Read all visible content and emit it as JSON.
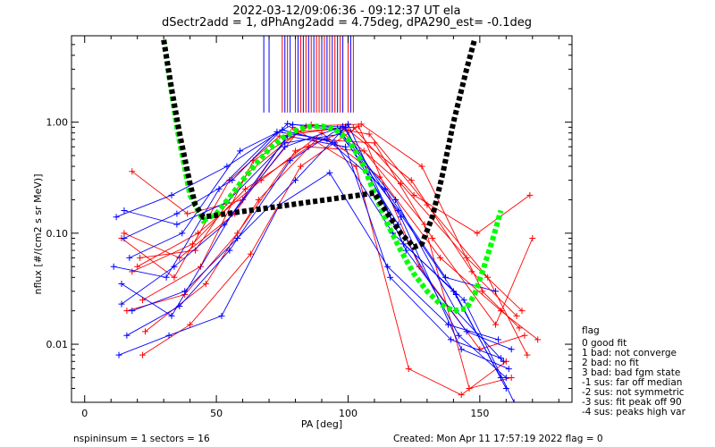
{
  "header": {
    "title_line1": "2022-03-12/09:06:36 - 09:12:37 UT ela",
    "title_line2": "dSectr2add = 1, dPhAng2add = 4.75deg, dPA290_est=  -0.1deg"
  },
  "footer": {
    "left": "nspininsum =  1  sectors = 16",
    "right": "Created: Mon Apr 11 17:57:19 2022   flag = 0"
  },
  "legend": {
    "title": "flag",
    "items": [
      " 0 good fit",
      " 1 bad: not converge",
      " 2 bad: no fit",
      " 3 bad: bad fgm state",
      "-1 sus: far off median",
      "-2 sus: not symmetric",
      "-3 sus: fit peak off 90",
      "-4 sus: peaks high var"
    ]
  },
  "colors": {
    "red_series": "#ff0000",
    "blue_series": "#0000ff",
    "fit_green": "#00ff00",
    "fit_black": "#000000"
  },
  "chart_data": {
    "type": "line",
    "xlabel": "PA [deg]",
    "ylabel": "nflux [#/(cm2 s sr MeV)]",
    "xlim": [
      -5,
      185
    ],
    "ylim": [
      0.003,
      6.0
    ],
    "yscale": "log",
    "x_ticks": [
      0,
      50,
      100,
      150
    ],
    "y_ticks": [
      {
        "value": 0.01,
        "label": "0.01"
      },
      {
        "value": 0.1,
        "label": "0.10"
      },
      {
        "value": 1.0,
        "label": "1.00"
      }
    ],
    "grid": false,
    "series": [
      {
        "color": "red",
        "x": [
          14,
          34,
          55,
          74,
          96,
          120,
          145,
          166
        ],
        "y": [
          0.09,
          0.04,
          0.3,
          0.75,
          0.88,
          0.28,
          0.06,
          0.02
        ]
      },
      {
        "color": "red",
        "x": [
          18,
          39,
          60,
          81,
          102,
          125,
          149,
          169
        ],
        "y": [
          0.36,
          0.15,
          0.2,
          0.82,
          0.9,
          0.22,
          0.1,
          0.22
        ]
      },
      {
        "color": "red",
        "x": [
          21,
          42,
          62,
          84,
          105,
          128,
          151,
          165
        ],
        "y": [
          0.06,
          0.07,
          0.35,
          0.92,
          0.96,
          0.4,
          0.03,
          0.014
        ]
      },
      {
        "color": "red",
        "x": [
          22,
          44,
          64,
          86,
          108,
          130,
          153,
          168
        ],
        "y": [
          0.025,
          0.05,
          0.45,
          0.95,
          0.78,
          0.18,
          0.04,
          0.008
        ]
      },
      {
        "color": "red",
        "x": [
          23,
          46,
          66,
          88,
          110,
          132,
          156,
          170
        ],
        "y": [
          0.013,
          0.035,
          0.2,
          0.7,
          0.65,
          0.09,
          0.015,
          0.09
        ]
      },
      {
        "color": "red",
        "x": [
          16,
          38,
          58,
          80,
          100,
          124,
          147,
          164
        ],
        "y": [
          0.02,
          0.028,
          0.1,
          0.55,
          0.85,
          0.3,
          0.045,
          0.018
        ]
      },
      {
        "color": "red",
        "x": [
          22,
          40,
          63,
          82,
          104,
          127,
          150,
          167
        ],
        "y": [
          0.008,
          0.015,
          0.065,
          0.4,
          0.92,
          0.05,
          0.009,
          0.012
        ]
      },
      {
        "color": "red",
        "x": [
          20,
          43,
          67,
          90,
          112,
          135,
          158,
          172
        ],
        "y": [
          0.05,
          0.1,
          0.3,
          0.8,
          0.32,
          0.06,
          0.02,
          0.011
        ]
      },
      {
        "color": "red",
        "x": [
          15,
          36,
          57,
          79,
          103,
          123,
          143,
          160
        ],
        "y": [
          0.1,
          0.06,
          0.15,
          0.9,
          0.4,
          0.006,
          0.0035,
          0.007
        ]
      },
      {
        "color": "red",
        "x": [
          18,
          41,
          61,
          85,
          106,
          129,
          146,
          162
        ],
        "y": [
          0.045,
          0.08,
          0.25,
          0.6,
          0.55,
          0.12,
          0.004,
          0.005
        ]
      },
      {
        "color": "blue",
        "x": [
          12,
          33,
          54,
          75,
          95,
          117,
          140,
          158
        ],
        "y": [
          0.14,
          0.22,
          0.4,
          0.85,
          0.65,
          0.1,
          0.03,
          0.005
        ]
      },
      {
        "color": "blue",
        "x": [
          15,
          35,
          56,
          77,
          97,
          119,
          142,
          160
        ],
        "y": [
          0.09,
          0.15,
          0.3,
          0.97,
          0.84,
          0.12,
          0.012,
          0.005
        ]
      },
      {
        "color": "blue",
        "x": [
          17,
          37,
          59,
          79,
          99,
          121,
          144,
          163
        ],
        "y": [
          0.06,
          0.1,
          0.55,
          0.95,
          0.9,
          0.08,
          0.025,
          0.003
        ]
      },
      {
        "color": "blue",
        "x": [
          13,
          32,
          52,
          74,
          93,
          115,
          138,
          157
        ],
        "y": [
          0.008,
          0.012,
          0.018,
          0.18,
          0.35,
          0.05,
          0.015,
          0.011
        ]
      },
      {
        "color": "blue",
        "x": [
          14,
          34,
          53,
          76,
          96,
          118,
          141,
          159
        ],
        "y": [
          0.023,
          0.05,
          0.12,
          0.6,
          0.88,
          0.2,
          0.02,
          0.007
        ]
      },
      {
        "color": "blue",
        "x": [
          16,
          36,
          55,
          78,
          98,
          120,
          143,
          161
        ],
        "y": [
          0.012,
          0.022,
          0.07,
          0.45,
          0.92,
          0.14,
          0.009,
          0.006
        ]
      },
      {
        "color": "blue",
        "x": [
          11,
          31,
          51,
          73,
          92,
          114,
          137,
          156
        ],
        "y": [
          0.05,
          0.04,
          0.25,
          0.82,
          0.7,
          0.25,
          0.04,
          0.03
        ]
      },
      {
        "color": "blue",
        "x": [
          18,
          38,
          58,
          80,
          100,
          122,
          145,
          162
        ],
        "y": [
          0.02,
          0.03,
          0.09,
          0.3,
          0.96,
          0.07,
          0.013,
          0.009
        ]
      },
      {
        "color": "blue",
        "x": [
          15,
          35,
          54,
          76,
          97,
          119,
          141,
          160
        ],
        "y": [
          0.16,
          0.12,
          0.19,
          0.65,
          0.78,
          0.16,
          0.028,
          0.004
        ]
      },
      {
        "color": "blue",
        "x": [
          14,
          33,
          56,
          77,
          99,
          116,
          139,
          158
        ],
        "y": [
          0.035,
          0.018,
          0.15,
          0.75,
          0.6,
          0.04,
          0.011,
          0.0075
        ]
      }
    ],
    "fits": [
      {
        "color": "green",
        "x": [
          30,
          35,
          40,
          45,
          50,
          55,
          60,
          65,
          70,
          75,
          80,
          85,
          90,
          95,
          100,
          105,
          110,
          115,
          120,
          125,
          130,
          135,
          140,
          145,
          148,
          151,
          155,
          158
        ],
        "y": [
          5.5,
          0.9,
          0.22,
          0.13,
          0.15,
          0.21,
          0.3,
          0.42,
          0.57,
          0.72,
          0.84,
          0.91,
          0.92,
          0.86,
          0.7,
          0.45,
          0.23,
          0.12,
          0.07,
          0.043,
          0.03,
          0.023,
          0.02,
          0.021,
          0.028,
          0.045,
          0.09,
          0.16
        ]
      },
      {
        "color": "black",
        "x": [
          30,
          33,
          36,
          40,
          42,
          45,
          110,
          115,
          120,
          125,
          128,
          132,
          136,
          140,
          145,
          148
        ],
        "y": [
          5.5,
          2.0,
          0.8,
          0.28,
          0.18,
          0.14,
          0.23,
          0.15,
          0.1,
          0.075,
          0.08,
          0.14,
          0.35,
          1.0,
          3.0,
          5.5
        ]
      }
    ],
    "top_markers": {
      "red": [
        75,
        77,
        80,
        82,
        84,
        86,
        88,
        89,
        91,
        93,
        95,
        97,
        100,
        102
      ],
      "blue": [
        68,
        70,
        76,
        78,
        81,
        83,
        85,
        87,
        90,
        92,
        94,
        96,
        98,
        101
      ]
    }
  }
}
